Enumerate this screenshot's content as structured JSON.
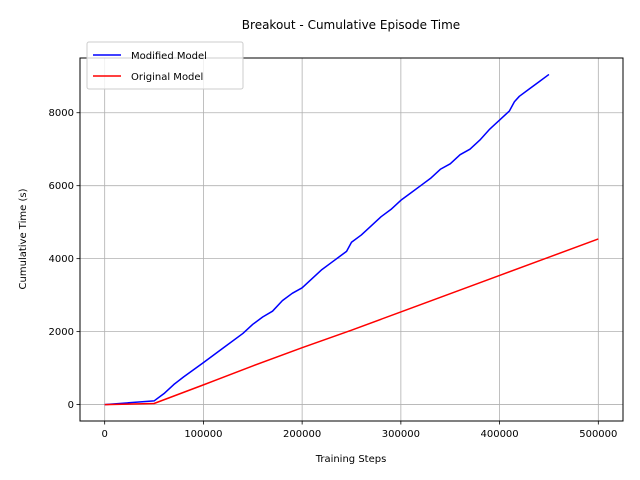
{
  "chart_data": {
    "type": "line",
    "title": "Breakout - Cumulative Episode Time",
    "xlabel": "Training Steps",
    "ylabel": "Cumulative Time (s)",
    "xlim": [
      -25000,
      525000
    ],
    "ylim": [
      -450,
      9500
    ],
    "xticks": [
      0,
      100000,
      200000,
      300000,
      400000,
      500000
    ],
    "xtick_labels": [
      "0",
      "100000",
      "200000",
      "300000",
      "400000",
      "500000"
    ],
    "yticks": [
      0,
      2000,
      4000,
      6000,
      8000
    ],
    "ytick_labels": [
      "0",
      "2000",
      "4000",
      "6000",
      "8000"
    ],
    "grid": true,
    "legend_position": "top-left",
    "series": [
      {
        "name": "Modified Model",
        "color": "#0000ff",
        "x": [
          0,
          50000,
          60000,
          70000,
          80000,
          100000,
          120000,
          140000,
          150000,
          160000,
          170000,
          180000,
          190000,
          200000,
          210000,
          220000,
          230000,
          240000,
          245000,
          250000,
          260000,
          270000,
          280000,
          290000,
          300000,
          310000,
          320000,
          330000,
          340000,
          350000,
          360000,
          370000,
          380000,
          390000,
          400000,
          410000,
          415000,
          420000,
          430000,
          440000,
          450000
        ],
        "y": [
          0,
          100,
          300,
          550,
          760,
          1150,
          1550,
          1950,
          2200,
          2400,
          2560,
          2850,
          3050,
          3200,
          3450,
          3700,
          3900,
          4100,
          4200,
          4450,
          4650,
          4900,
          5150,
          5350,
          5600,
          5800,
          6000,
          6200,
          6450,
          6600,
          6850,
          7000,
          7250,
          7550,
          7800,
          8050,
          8300,
          8450,
          8650,
          8850,
          9050
        ]
      },
      {
        "name": "Original Model",
        "color": "#ff0000",
        "x": [
          0,
          50000,
          100000,
          150000,
          200000,
          250000,
          300000,
          350000,
          400000,
          450000,
          500000
        ],
        "y": [
          0,
          30,
          540,
          1060,
          1560,
          2040,
          2540,
          3040,
          3540,
          4040,
          4540
        ]
      }
    ]
  }
}
